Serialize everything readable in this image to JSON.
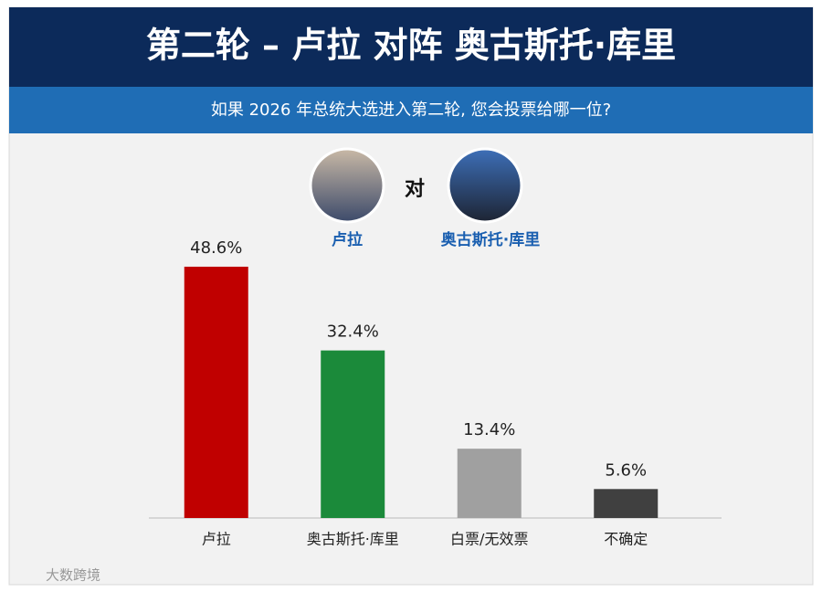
{
  "chart_data": {
    "type": "bar",
    "title": "第二轮 – 卢拉 对阵 奥古斯托·库里",
    "subtitle": "如果 2026 年总统大选进入第二轮, 您会投票给哪一位?",
    "matchup": {
      "left": "卢拉",
      "versus": "对",
      "right": "奥古斯托·库里"
    },
    "categories": [
      "卢拉",
      "奥古斯托·库里",
      "白票/无效票",
      "不确定"
    ],
    "values": [
      48.6,
      32.4,
      13.4,
      5.6
    ],
    "value_labels": [
      "48.6%",
      "32.4%",
      "13.4%",
      "5.6%"
    ],
    "colors": [
      "#c00000",
      "#1b8a3a",
      "#a0a0a0",
      "#404040"
    ],
    "watermark": "大数跨境"
  }
}
